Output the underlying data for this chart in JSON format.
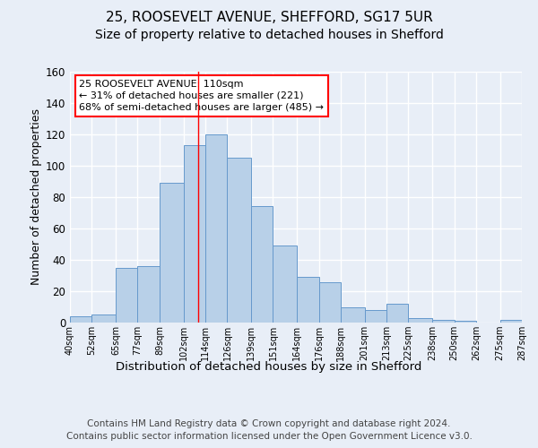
{
  "title1": "25, ROOSEVELT AVENUE, SHEFFORD, SG17 5UR",
  "title2": "Size of property relative to detached houses in Shefford",
  "xlabel": "Distribution of detached houses by size in Shefford",
  "ylabel": "Number of detached properties",
  "bin_labels": [
    "40sqm",
    "52sqm",
    "65sqm",
    "77sqm",
    "89sqm",
    "102sqm",
    "114sqm",
    "126sqm",
    "139sqm",
    "151sqm",
    "164sqm",
    "176sqm",
    "188sqm",
    "201sqm",
    "213sqm",
    "225sqm",
    "238sqm",
    "250sqm",
    "262sqm",
    "275sqm",
    "287sqm"
  ],
  "bar_heights": [
    4,
    5,
    35,
    36,
    89,
    113,
    120,
    105,
    74,
    49,
    29,
    26,
    10,
    8,
    12,
    3,
    2,
    1,
    0,
    2
  ],
  "bin_edges": [
    40,
    52,
    65,
    77,
    89,
    102,
    114,
    126,
    139,
    151,
    164,
    176,
    188,
    201,
    213,
    225,
    238,
    250,
    262,
    275,
    287
  ],
  "bar_color": "#b8d0e8",
  "bar_edge_color": "#6699cc",
  "property_sqm": 110,
  "vline_color": "red",
  "annotation_text": "25 ROOSEVELT AVENUE: 110sqm\n← 31% of detached houses are smaller (221)\n68% of semi-detached houses are larger (485) →",
  "annotation_box_color": "white",
  "annotation_box_edge": "red",
  "ylim": [
    0,
    160
  ],
  "yticks": [
    0,
    20,
    40,
    60,
    80,
    100,
    120,
    140,
    160
  ],
  "footer": "Contains HM Land Registry data © Crown copyright and database right 2024.\nContains public sector information licensed under the Open Government Licence v3.0.",
  "background_color": "#e8eef7",
  "plot_background_color": "#e8eef7",
  "grid_color": "#ffffff",
  "title1_fontsize": 11,
  "title2_fontsize": 10,
  "xlabel_fontsize": 9.5,
  "ylabel_fontsize": 9,
  "footer_fontsize": 7.5,
  "annot_fontsize": 8
}
